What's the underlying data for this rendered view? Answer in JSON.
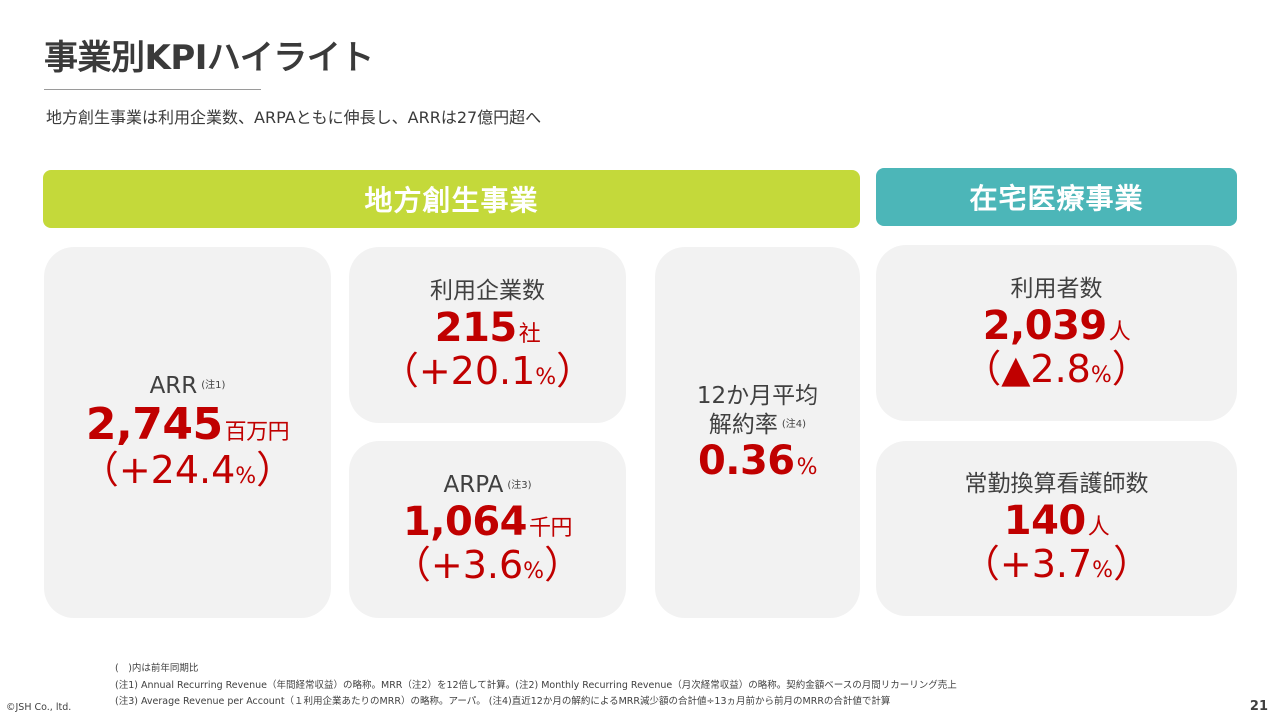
{
  "header": {
    "title": "事業別KPIハイライト",
    "subtitle": "地方創生事業は利用企業数、ARPAともに伸長し、ARRは27億円超へ"
  },
  "sections": {
    "regional": "地方創生事業",
    "homecare": "在宅医療事業"
  },
  "cards": {
    "arr": {
      "label": "ARR",
      "note": "(注1)",
      "value": "2,745",
      "unit": "百万円",
      "change_open": "（+24.4",
      "change_pct": "%",
      "change_close": "）"
    },
    "users": {
      "label": "利用企業数",
      "value": "215",
      "unit": "社",
      "change_open": "（+20.1",
      "change_pct": "%",
      "change_close": "）"
    },
    "arpa": {
      "label": "ARPA",
      "note": "(注3)",
      "value": "1,064",
      "unit": "千円",
      "change_open": "（+3.6",
      "change_pct": "%",
      "change_close": "）"
    },
    "churn": {
      "label_line1": "12か月平均",
      "label_line2": "解約率",
      "note": "(注4)",
      "value": "0.36",
      "unit": "%"
    },
    "hc_users": {
      "label": "利用者数",
      "value": "2,039",
      "unit": "人",
      "change_open": "（▲2.8",
      "change_pct": "%",
      "change_close": "）"
    },
    "nurses": {
      "label": "常勤換算看護師数",
      "value": "140",
      "unit": "人",
      "change_open": "（+3.7",
      "change_pct": "%",
      "change_close": "）"
    }
  },
  "footnotes": [
    "(　)内は前年同期比",
    "(注1) Annual Recurring Revenue（年間経常収益）の略称。MRR（注2）を12倍して計算。(注2) Monthly Recurring Revenue（月次経常収益）の略称。契約金額ベースの月間リカーリング売上",
    "(注3) Average Revenue per Account（１利用企業あたりのMRR）の略称。アーパ。 (注4)直近12か月の解約によるMRR減少額の合計値÷13ヵ月前から前月のMRRの合計値で計算"
  ],
  "footer": {
    "copyright": "©JSH Co., ltd.",
    "page_number": "21"
  },
  "colors": {
    "regional_band": "#c4d93a",
    "homecare_band": "#4cb6b8",
    "accent_red": "#c00000",
    "card_bg": "#f2f2f2"
  }
}
